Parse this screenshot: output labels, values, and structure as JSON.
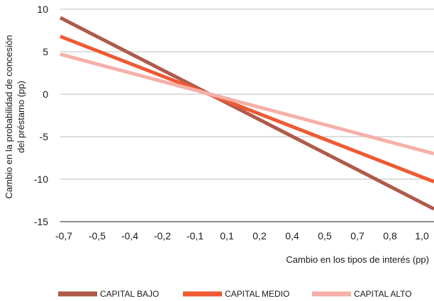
{
  "chart_data": {
    "type": "line",
    "title": "",
    "xlabel": "Cambio en los tipos de interés (pp)",
    "ylabel": [
      "Cambio en la probabilidad de concesión",
      "del préstamo (pp)"
    ],
    "x_tick_labels": [
      "-0,7",
      "-0,5",
      "-0,4",
      "-0,2",
      "-0,1",
      "0,1",
      "0,2",
      "0,4",
      "0,5",
      "0,7",
      "0,8",
      "1,0"
    ],
    "y_ticks": [
      10,
      5,
      0,
      -5,
      -10,
      -15
    ],
    "y_tick_labels": [
      "10",
      "5",
      "0",
      "-5",
      "-10",
      "-15"
    ],
    "ylim": [
      -15,
      10
    ],
    "grid": "horizontal",
    "legend_position": "bottom",
    "series": [
      {
        "name": "CAPITAL BAJO",
        "color": "#b05a4a",
        "start": 9.0,
        "end": -13.5
      },
      {
        "name": "CAPITAL MEDIO",
        "color": "#ee5a33",
        "start": 6.8,
        "end": -10.3
      },
      {
        "name": "CAPITAL ALTO",
        "color": "#f6b0a8",
        "start": 4.7,
        "end": -7.0
      }
    ]
  }
}
